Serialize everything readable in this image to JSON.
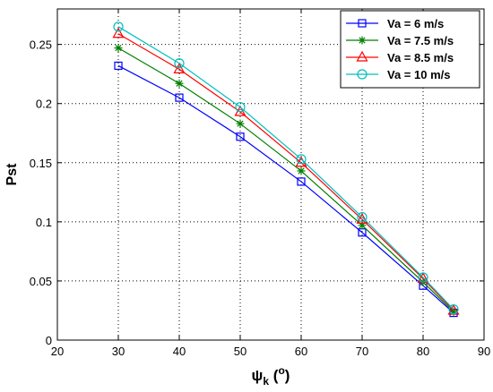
{
  "chart_data": {
    "type": "line",
    "xlabel": {
      "main": "ψ",
      "sub": "k",
      "unit_open": " (",
      "unit_sym": "o",
      "unit_close": ")"
    },
    "ylabel": "Pst",
    "xlim": [
      20,
      90
    ],
    "ylim": [
      0,
      0.28
    ],
    "xticks": [
      20,
      30,
      40,
      50,
      60,
      70,
      80,
      90
    ],
    "yticks": [
      0,
      0.05,
      0.1,
      0.15,
      0.2,
      0.25
    ],
    "ytick_labels": [
      "0",
      "0.05",
      "0.1",
      "0.15",
      "0.2",
      "0.25"
    ],
    "grid": true,
    "legend_position": "top-right",
    "x": [
      30,
      40,
      50,
      60,
      70,
      80,
      85
    ],
    "series": [
      {
        "name": "Va = 6 m/s",
        "color": "#0000ff",
        "marker": "square",
        "values": [
          0.232,
          0.205,
          0.172,
          0.134,
          0.091,
          0.046,
          0.023
        ]
      },
      {
        "name": "Va = 7.5 m/s",
        "color": "#007f00",
        "marker": "asterisk",
        "values": [
          0.247,
          0.217,
          0.183,
          0.143,
          0.097,
          0.049,
          0.024
        ]
      },
      {
        "name": "Va = 8.5 m/s",
        "color": "#ff0000",
        "marker": "triangle",
        "values": [
          0.259,
          0.229,
          0.193,
          0.15,
          0.102,
          0.052,
          0.025
        ]
      },
      {
        "name": "Va = 10 m/s",
        "color": "#00bfbf",
        "marker": "circle",
        "values": [
          0.265,
          0.234,
          0.197,
          0.153,
          0.104,
          0.053,
          0.026
        ]
      }
    ]
  }
}
